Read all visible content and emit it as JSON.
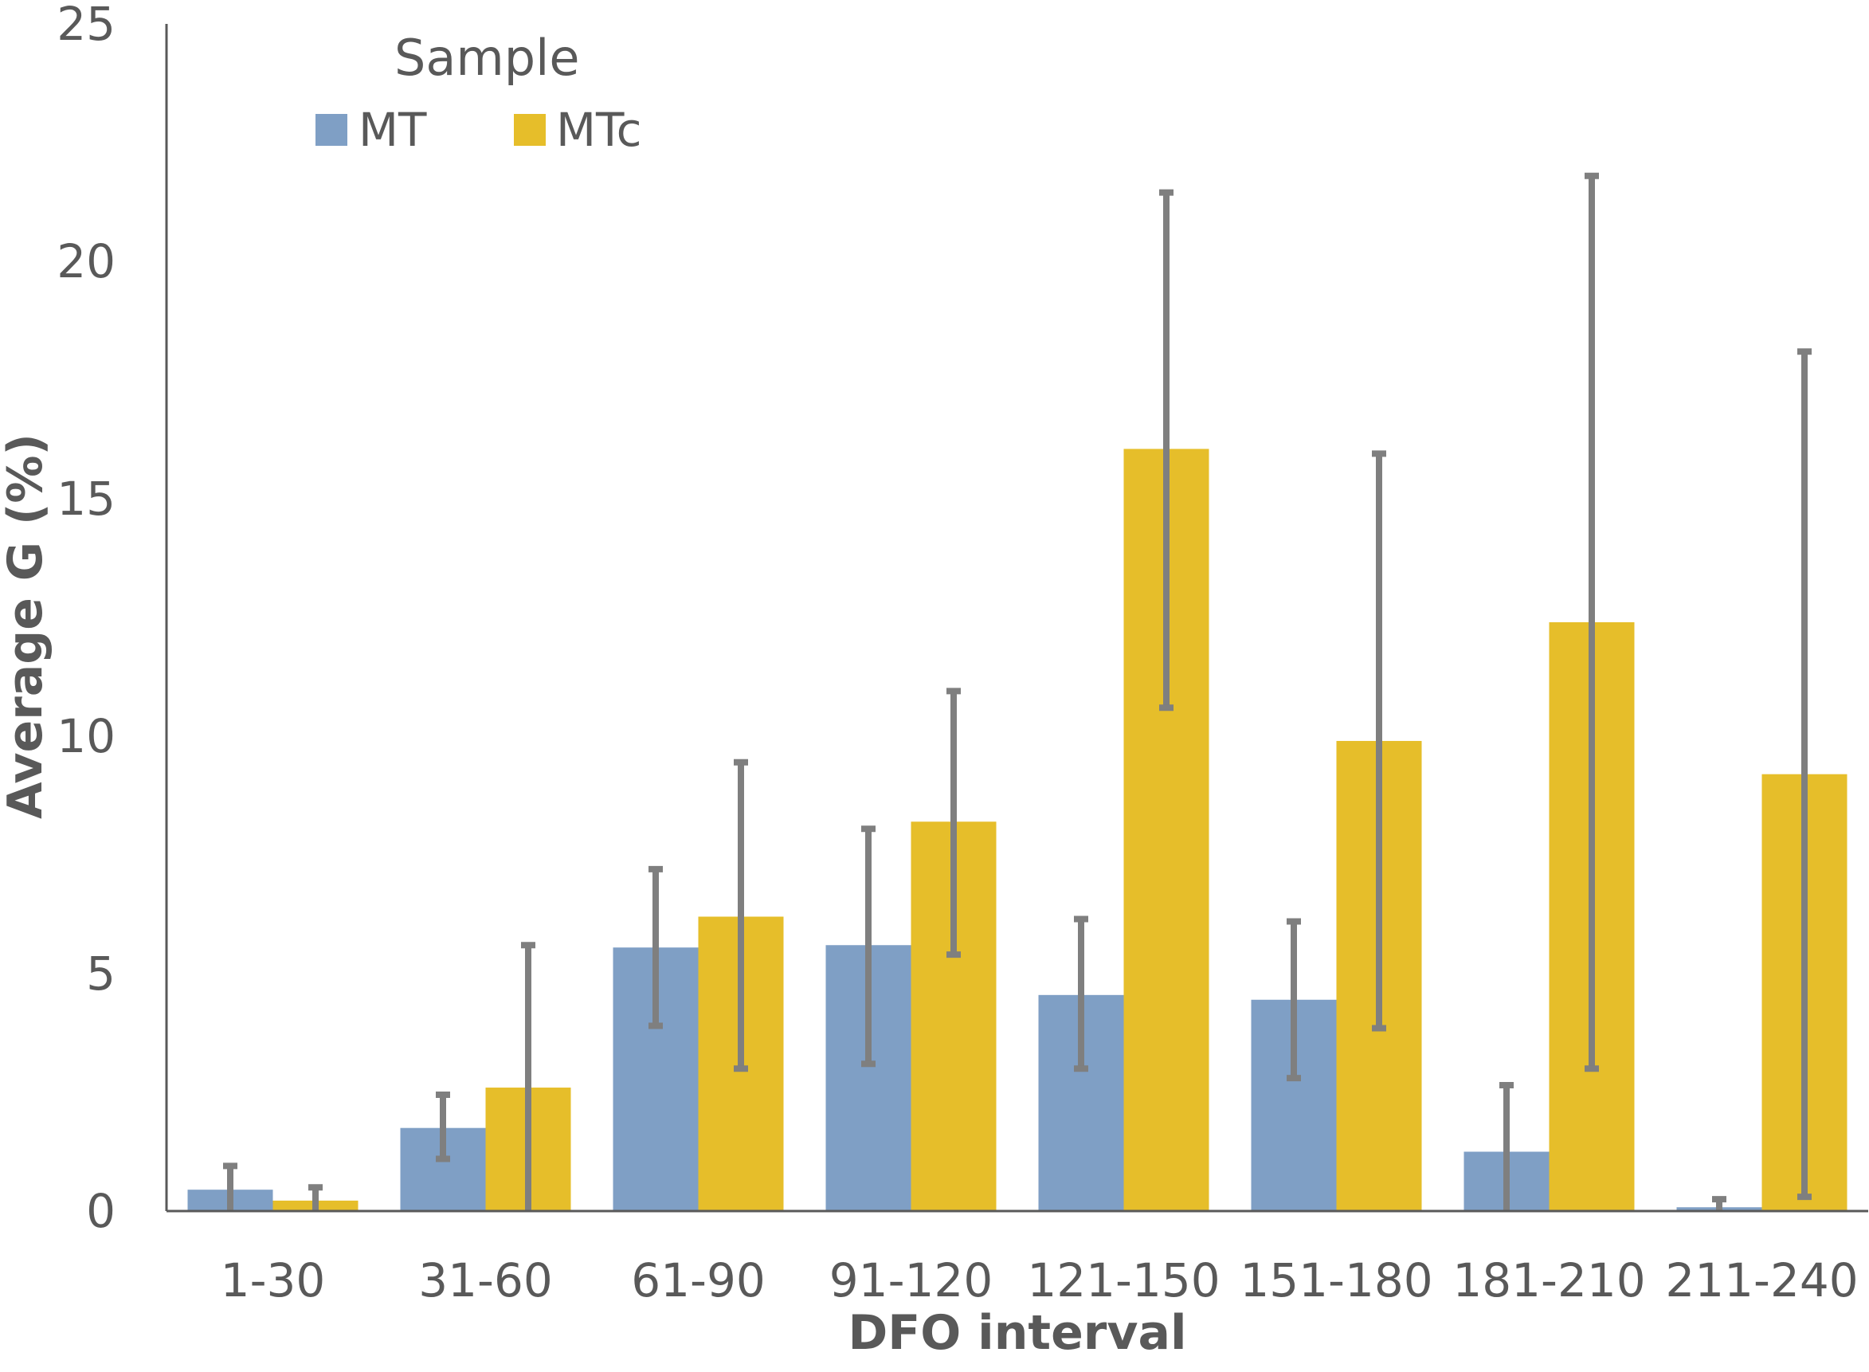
{
  "chart_data": {
    "type": "bar",
    "title": "",
    "xlabel": "DFO interval",
    "ylabel": "Average G (%)",
    "ylim": [
      0,
      25
    ],
    "yticks": [
      0,
      5,
      10,
      15,
      20,
      25
    ],
    "grid": false,
    "legend": {
      "title": "Sample",
      "placement": "top-left"
    },
    "categories": [
      "1-30",
      "31-60",
      "61-90",
      "91-120",
      "121-150",
      "151-180",
      "181-210",
      "211-240"
    ],
    "series": [
      {
        "name": "MT",
        "color": "#7F9FC5",
        "values": [
          0.45,
          1.75,
          5.55,
          5.6,
          4.55,
          4.45,
          1.25,
          0.08
        ],
        "error_low": [
          0.0,
          1.1,
          3.9,
          3.1,
          3.0,
          2.8,
          0.0,
          0.0
        ],
        "error_high": [
          0.95,
          2.45,
          7.2,
          8.05,
          6.15,
          6.1,
          2.65,
          0.25
        ]
      },
      {
        "name": "MTc",
        "color": "#E6BE2A",
        "values": [
          0.22,
          2.6,
          6.2,
          8.2,
          16.05,
          9.9,
          12.4,
          9.2
        ],
        "error_low": [
          0.0,
          0.0,
          3.0,
          5.4,
          10.6,
          3.85,
          3.0,
          0.3
        ],
        "error_high": [
          0.5,
          5.6,
          9.45,
          10.95,
          21.45,
          15.95,
          21.8,
          18.1
        ]
      }
    ],
    "error_bar_color": "#7F7F7F"
  }
}
